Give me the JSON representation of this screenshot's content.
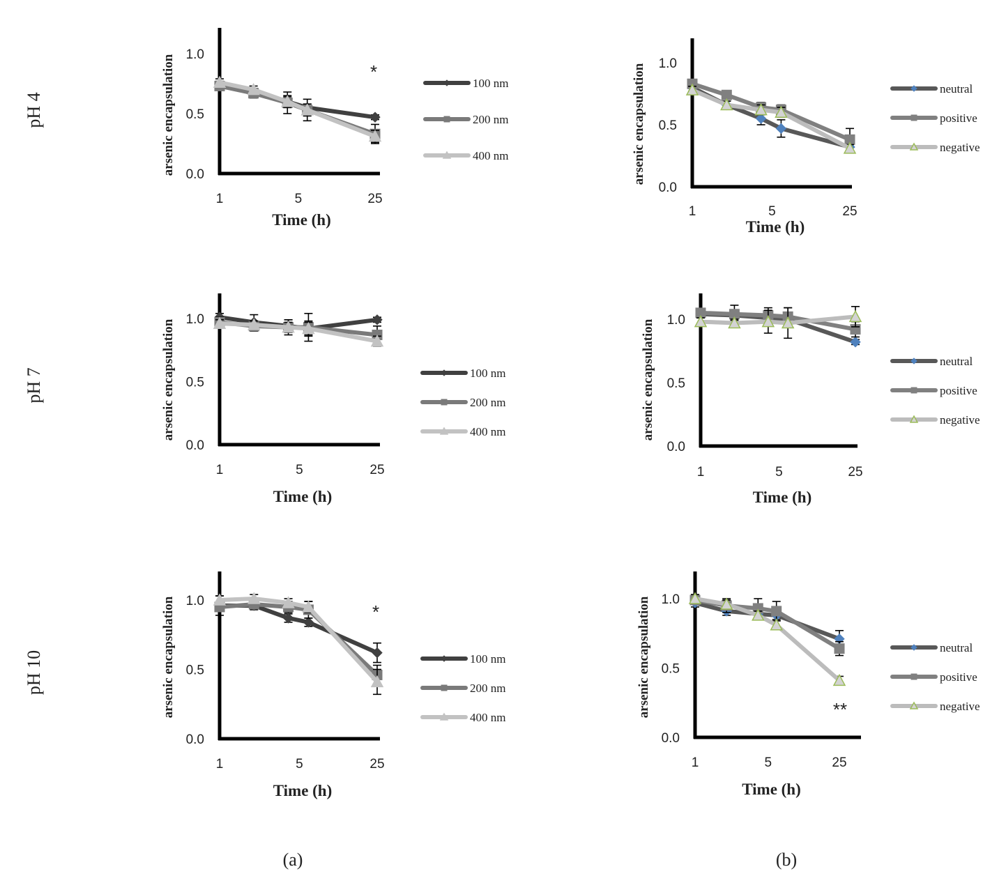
{
  "figure": {
    "row_labels": [
      "pH 4",
      "pH 7",
      "pH 10"
    ],
    "panel_labels": [
      "(a)",
      "(b)"
    ]
  },
  "colors": {
    "100 nm": "#404040",
    "200 nm": "#7a7a7a",
    "400 nm": "#c2c2c2",
    "neutral": "#585858",
    "positive": "#808080",
    "negative": "#bcbcbc",
    "neutral_marker": "#4f81bd",
    "negative_marker_fill": "#9bbb59",
    "axis": "#000000"
  },
  "chart_data": [
    {
      "id": "a-ph4",
      "type": "line",
      "xlabel": "Time (h)",
      "ylabel": "arsenic encapsulation",
      "x_scale": "log",
      "x_ticks": [
        "1",
        "5",
        "25"
      ],
      "y_ticks": [
        "0.0",
        "0.5",
        "1.0"
      ],
      "ylim": [
        0,
        1.2
      ],
      "annotations": [
        "*"
      ],
      "series": [
        {
          "name": "100 nm",
          "marker": "diamond",
          "x": [
            1,
            2,
            4,
            6,
            24
          ],
          "y": [
            0.74,
            0.68,
            0.6,
            0.55,
            0.47
          ],
          "err": [
            0.03,
            0.03,
            0.04,
            0.03,
            0.02
          ]
        },
        {
          "name": "200 nm",
          "marker": "square",
          "x": [
            1,
            2,
            4,
            6,
            24
          ],
          "y": [
            0.73,
            0.67,
            0.59,
            0.53,
            0.33
          ],
          "err": [
            0.03,
            0.04,
            0.09,
            0.09,
            0.08
          ]
        },
        {
          "name": "400 nm",
          "marker": "triangle",
          "x": [
            1,
            2,
            4,
            6,
            24
          ],
          "y": [
            0.76,
            0.7,
            0.6,
            0.53,
            0.31
          ],
          "err": [
            0.03,
            0.03,
            0.05,
            0.05,
            0.05
          ]
        }
      ]
    },
    {
      "id": "b-ph4",
      "type": "line",
      "xlabel": "Time (h)",
      "ylabel": "arsenic encapsulation",
      "x_scale": "log",
      "x_ticks": [
        "1",
        "5",
        "25"
      ],
      "y_ticks": [
        "0.0",
        "0.5",
        "1.0"
      ],
      "ylim": [
        0,
        1.2
      ],
      "series": [
        {
          "name": "neutral",
          "marker": "diamond",
          "x": [
            1,
            2,
            4,
            6,
            24
          ],
          "y": [
            0.8,
            0.66,
            0.55,
            0.47,
            0.32
          ],
          "err": [
            0.03,
            0.03,
            0.05,
            0.07,
            0.03
          ]
        },
        {
          "name": "positive",
          "marker": "square",
          "x": [
            1,
            2,
            4,
            6,
            24
          ],
          "y": [
            0.83,
            0.74,
            0.64,
            0.62,
            0.38
          ],
          "err": [
            0.03,
            0.03,
            0.04,
            0.04,
            0.09
          ]
        },
        {
          "name": "negative",
          "marker": "triangle",
          "x": [
            1,
            2,
            4,
            6,
            24
          ],
          "y": [
            0.78,
            0.66,
            0.62,
            0.6,
            0.31
          ],
          "err": [
            0.03,
            0.03,
            0.04,
            0.04,
            0.03
          ]
        }
      ]
    },
    {
      "id": "a-ph7",
      "type": "line",
      "xlabel": "Time (h)",
      "ylabel": "arsenic encapsulation",
      "x_scale": "log",
      "x_ticks": [
        "1",
        "5",
        "25"
      ],
      "y_ticks": [
        "0.0",
        "0.5",
        "1.0"
      ],
      "ylim": [
        0,
        1.2
      ],
      "series": [
        {
          "name": "100 nm",
          "marker": "diamond",
          "x": [
            1,
            2,
            4,
            6,
            24
          ],
          "y": [
            1.01,
            0.97,
            0.94,
            0.92,
            0.99
          ],
          "err": [
            0.03,
            0.06,
            0.05,
            0.06,
            0.02
          ]
        },
        {
          "name": "200 nm",
          "marker": "square",
          "x": [
            1,
            2,
            4,
            6,
            24
          ],
          "y": [
            0.97,
            0.94,
            0.93,
            0.93,
            0.87
          ],
          "err": [
            0.04,
            0.04,
            0.06,
            0.11,
            0.07
          ]
        },
        {
          "name": "400 nm",
          "marker": "triangle",
          "x": [
            1,
            2,
            4,
            6,
            24
          ],
          "y": [
            0.96,
            0.95,
            0.93,
            0.92,
            0.82
          ],
          "err": [
            0.03,
            0.03,
            0.04,
            0.05,
            0.04
          ]
        }
      ]
    },
    {
      "id": "b-ph7",
      "type": "line",
      "xlabel": "Time (h)",
      "ylabel": "arsenic encapsulation",
      "x_scale": "log",
      "x_ticks": [
        "1",
        "5",
        "25"
      ],
      "y_ticks": [
        "0.0",
        "0.5",
        "1.0"
      ],
      "ylim": [
        0,
        1.2
      ],
      "series": [
        {
          "name": "neutral",
          "marker": "diamond",
          "x": [
            1,
            2,
            4,
            6,
            24
          ],
          "y": [
            1.04,
            1.03,
            1.01,
            1.0,
            0.82
          ],
          "err": [
            0.03,
            0.04,
            0.05,
            0.05,
            0.02
          ]
        },
        {
          "name": "positive",
          "marker": "square",
          "x": [
            1,
            2,
            4,
            6,
            24
          ],
          "y": [
            1.05,
            1.04,
            1.03,
            1.02,
            0.92
          ],
          "err": [
            0.03,
            0.07,
            0.06,
            0.07,
            0.06
          ]
        },
        {
          "name": "negative",
          "marker": "triangle",
          "x": [
            1,
            2,
            4,
            6,
            24
          ],
          "y": [
            0.98,
            0.97,
            0.98,
            0.97,
            1.02
          ],
          "err": [
            0.03,
            0.03,
            0.09,
            0.12,
            0.08
          ]
        }
      ]
    },
    {
      "id": "a-ph10",
      "type": "line",
      "xlabel": "Time (h)",
      "ylabel": "arsenic encapsulation",
      "x_scale": "log",
      "x_ticks": [
        "1",
        "5",
        "25"
      ],
      "y_ticks": [
        "0.0",
        "0.5",
        "1.0"
      ],
      "ylim": [
        0,
        1.2
      ],
      "annotations": [
        "*"
      ],
      "series": [
        {
          "name": "100 nm",
          "marker": "diamond",
          "x": [
            1,
            2,
            4,
            6,
            24
          ],
          "y": [
            0.96,
            0.96,
            0.87,
            0.84,
            0.62
          ],
          "err": [
            0.07,
            0.03,
            0.03,
            0.03,
            0.07
          ]
        },
        {
          "name": "200 nm",
          "marker": "square",
          "x": [
            1,
            2,
            4,
            6,
            24
          ],
          "y": [
            0.95,
            0.97,
            0.95,
            0.93,
            0.46
          ],
          "err": [
            0.03,
            0.03,
            0.04,
            0.06,
            0.07
          ]
        },
        {
          "name": "400 nm",
          "marker": "triangle",
          "x": [
            1,
            2,
            4,
            6,
            24
          ],
          "y": [
            1.0,
            1.01,
            0.98,
            0.95,
            0.41
          ],
          "err": [
            0.03,
            0.03,
            0.03,
            0.04,
            0.09
          ]
        }
      ]
    },
    {
      "id": "b-ph10",
      "type": "line",
      "xlabel": "Time (h)",
      "ylabel": "arsenic encapsulation",
      "x_scale": "log",
      "x_ticks": [
        "1",
        "5",
        "25"
      ],
      "y_ticks": [
        "0.0",
        "0.5",
        "1.0"
      ],
      "ylim": [
        0,
        1.2
      ],
      "annotations": [
        "**"
      ],
      "series": [
        {
          "name": "neutral",
          "marker": "diamond",
          "x": [
            1,
            2,
            4,
            6,
            24
          ],
          "y": [
            0.97,
            0.91,
            0.89,
            0.88,
            0.71
          ],
          "err": [
            0.03,
            0.03,
            0.03,
            0.03,
            0.06
          ]
        },
        {
          "name": "positive",
          "marker": "square",
          "x": [
            1,
            2,
            4,
            6,
            24
          ],
          "y": [
            0.99,
            0.95,
            0.93,
            0.91,
            0.64
          ],
          "err": [
            0.03,
            0.05,
            0.07,
            0.07,
            0.05
          ]
        },
        {
          "name": "negative",
          "marker": "triangle",
          "x": [
            1,
            2,
            4,
            6,
            24
          ],
          "y": [
            1.0,
            0.96,
            0.88,
            0.81,
            0.41
          ],
          "err": [
            0.03,
            0.03,
            0.03,
            0.03,
            0.03
          ]
        }
      ]
    }
  ]
}
